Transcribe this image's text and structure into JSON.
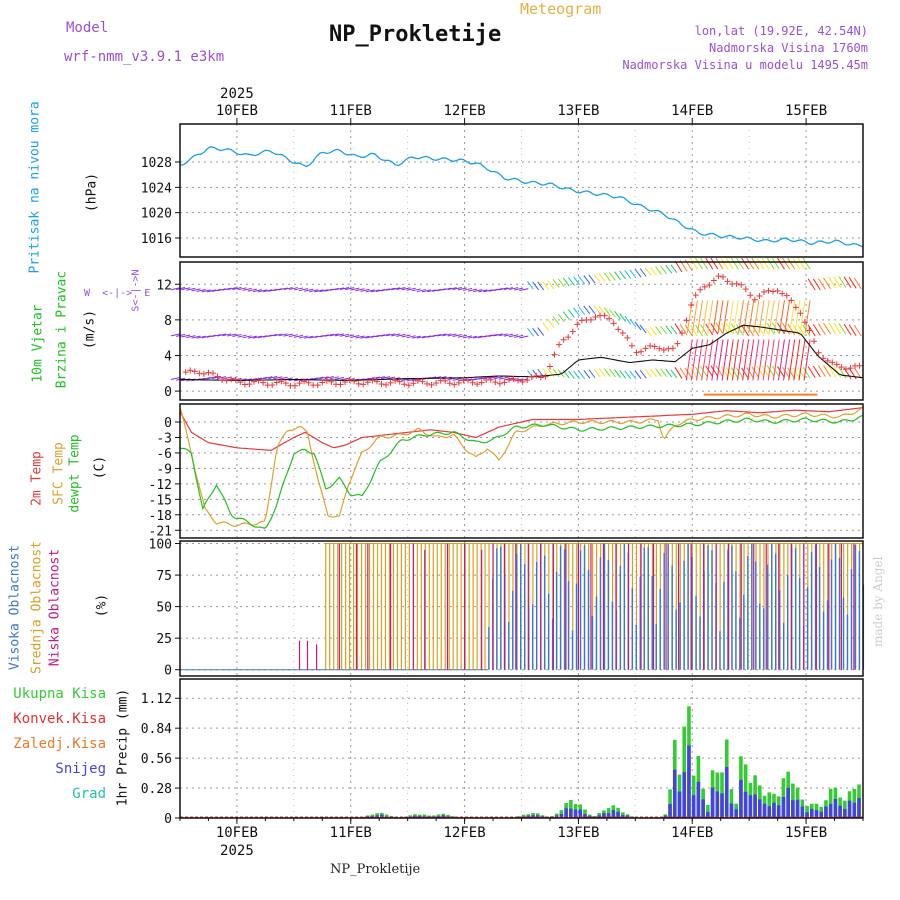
{
  "header": {
    "model_label": "Model",
    "model_name": "wrf-nmm_v3.9.1  e3km",
    "meteogram": "Meteogram",
    "station_title": "NP_Prokletije",
    "lonlat": "lon,lat (19.92E, 42.54N)",
    "altitude": "Nadmorska Visina 1760m",
    "model_altitude": "Nadmorska Visina u modelu 1495.45m",
    "footer_station": "NP_Prokletije",
    "watermark": "made by Angel"
  },
  "colors": {
    "pressure": "#1aa0e8",
    "temp2m": "#e83a3a",
    "sfc": "#e0a030",
    "dewpt": "#22c022",
    "high_cloud": "#3a78c8",
    "mid_cloud": "#d8a020",
    "low_cloud": "#c0188a",
    "total_rain": "#33cc33",
    "convective": "#e83030",
    "snow": "#4444dd",
    "hail": "#22c0b0",
    "title_purple": "#9a50d0",
    "meteogram_orange": "#e8b040"
  },
  "chart_data": [
    {
      "type": "line",
      "panel": "pressure",
      "title": "Pritisak na nivou mora",
      "ylabel": "(hPa)",
      "ylim": [
        1013,
        1034
      ],
      "yticks": [
        1016,
        1020,
        1024,
        1028
      ],
      "x_days": [
        9.5,
        9.6,
        9.75,
        9.9,
        10.1,
        10.3,
        10.5,
        10.6,
        10.75,
        10.9,
        11.05,
        11.2,
        11.4,
        11.55,
        11.75,
        11.95,
        12.1,
        12.2,
        12.35,
        12.55,
        12.75,
        12.95,
        13.15,
        13.35,
        13.55,
        13.75,
        13.9,
        14.05,
        14.25,
        14.45,
        14.65,
        14.85,
        15.05,
        15.25,
        15.45
      ],
      "values": [
        1027.5,
        1028.5,
        1030.2,
        1030.0,
        1029.0,
        1029.8,
        1028.0,
        1027.2,
        1029.5,
        1029.8,
        1028.8,
        1029.2,
        1027.5,
        1028.8,
        1028.5,
        1028.3,
        1027.8,
        1027.0,
        1025.5,
        1024.8,
        1024.5,
        1023.5,
        1023.0,
        1022.5,
        1021.0,
        1019.8,
        1018.2,
        1016.8,
        1016.3,
        1016.0,
        1015.5,
        1015.8,
        1015.2,
        1015.5,
        1014.8
      ]
    },
    {
      "type": "line",
      "panel": "wind",
      "title": "10m Vjetar Brzina i Pravac",
      "ylabel": "(m/s)",
      "ylim": [
        -1,
        14.5
      ],
      "yticks": [
        0,
        4,
        8,
        12
      ],
      "direction_legend": [
        "N",
        "W",
        "E",
        "S"
      ],
      "series": [
        {
          "name": "10m wind speed",
          "x_days": [
            9.5,
            10.0,
            10.5,
            11.0,
            11.5,
            12.0,
            12.3,
            12.6,
            12.85,
            13.0,
            13.2,
            13.45,
            13.65,
            13.85,
            14.0,
            14.15,
            14.3,
            14.45,
            14.6,
            14.8,
            14.95,
            15.1,
            15.3,
            15.5
          ],
          "values": [
            1.3,
            1.2,
            1.3,
            1.2,
            1.4,
            1.5,
            1.7,
            1.6,
            1.9,
            3.5,
            3.8,
            3.2,
            3.5,
            3.3,
            4.8,
            5.2,
            6.5,
            7.4,
            7.2,
            6.8,
            6.5,
            4.0,
            1.8,
            1.5
          ]
        },
        {
          "name": "gust",
          "x_days": [
            9.5,
            9.65,
            10.0,
            10.5,
            11.0,
            11.5,
            12.0,
            12.4,
            12.7,
            12.85,
            13.0,
            13.15,
            13.3,
            13.5,
            13.7,
            13.85,
            14.0,
            14.1,
            14.25,
            14.4,
            14.55,
            14.75,
            14.95,
            15.1,
            15.25,
            15.5
          ],
          "values": [
            1.8,
            2.3,
            1.0,
            0.8,
            1.0,
            0.9,
            1.0,
            1.1,
            1.6,
            5.5,
            7.5,
            8.5,
            8.0,
            4.5,
            5.0,
            4.5,
            10.0,
            11.8,
            12.8,
            12.0,
            10.5,
            11.5,
            9.0,
            4.5,
            2.8,
            2.6
          ]
        }
      ]
    },
    {
      "type": "line",
      "panel": "temperature",
      "ylabel": "(C)",
      "ylim": [
        -22.5,
        3.5
      ],
      "yticks": [
        0,
        -3,
        -6,
        -9,
        -12,
        -15,
        -18,
        -21
      ],
      "series": [
        {
          "name": "2m Temp",
          "x_days": [
            9.5,
            9.6,
            9.75,
            10.0,
            10.3,
            10.5,
            10.6,
            10.75,
            10.85,
            10.95,
            11.1,
            11.3,
            11.5,
            11.7,
            11.9,
            12.1,
            12.3,
            12.6,
            13.0,
            13.5,
            14.0,
            14.3,
            14.6,
            14.9,
            15.2,
            15.5
          ],
          "values": [
            2.0,
            -2.0,
            -4.0,
            -5.0,
            -5.5,
            -3.0,
            -2.0,
            -4.0,
            -5.0,
            -4.5,
            -3.0,
            -2.5,
            -2.0,
            -1.5,
            -2.0,
            -3.0,
            -1.0,
            0.5,
            0.5,
            1.0,
            1.5,
            2.2,
            1.8,
            2.3,
            2.0,
            2.8
          ]
        },
        {
          "name": "SFC Temp",
          "x_days": [
            9.5,
            9.62,
            9.72,
            9.82,
            10.0,
            10.25,
            10.35,
            10.45,
            10.55,
            10.62,
            10.72,
            10.8,
            10.9,
            10.98,
            11.1,
            11.25,
            11.45,
            11.6,
            11.75,
            11.9,
            12.0,
            12.1,
            12.2,
            12.3,
            12.45,
            12.7,
            13.0,
            13.5,
            13.7,
            13.75,
            13.85,
            14.0,
            14.5,
            14.7,
            15.0,
            15.3,
            15.5
          ],
          "values": [
            3.0,
            -8.0,
            -17.0,
            -19.5,
            -20.0,
            -19.5,
            -5.0,
            -1.5,
            -1.0,
            -2.0,
            -12.0,
            -18.0,
            -18.5,
            -12.0,
            -6.0,
            -3.0,
            -2.5,
            -1.5,
            -3.0,
            -2.5,
            -5.0,
            -7.0,
            -5.0,
            -7.5,
            -2.0,
            -0.5,
            0.0,
            0.0,
            0.5,
            -3.5,
            -0.5,
            0.5,
            1.5,
            1.0,
            1.5,
            1.0,
            2.5
          ]
        },
        {
          "name": "dewpt Temp",
          "x_days": [
            9.5,
            9.6,
            9.7,
            9.82,
            9.95,
            10.1,
            10.25,
            10.35,
            10.5,
            10.6,
            10.68,
            10.78,
            10.9,
            11.0,
            11.1,
            11.25,
            11.45,
            11.65,
            11.9,
            12.0,
            12.1,
            12.25,
            12.45,
            12.7,
            13.0,
            13.5,
            14.0,
            14.5,
            14.7,
            15.0,
            15.3,
            15.5
          ],
          "values": [
            -5.0,
            -6.0,
            -17.0,
            -12.0,
            -18.0,
            -19.5,
            -21.0,
            -16.0,
            -6.0,
            -5.5,
            -6.0,
            -13.0,
            -11.0,
            -14.0,
            -14.5,
            -8.0,
            -3.5,
            -2.5,
            -2.0,
            -3.0,
            -4.0,
            -3.5,
            -1.0,
            -0.5,
            -1.5,
            -1.0,
            -0.5,
            0.5,
            0.0,
            0.5,
            0.0,
            1.0
          ]
        }
      ]
    },
    {
      "type": "bar",
      "panel": "clouds",
      "ylabel": "(%)",
      "ylim": [
        -5,
        102
      ],
      "yticks": [
        0,
        25,
        50,
        75,
        100
      ],
      "series_names": [
        "Visoka Oblacnost",
        "Srednja Oblacnost",
        "Niska Oblacnost"
      ],
      "mid_cloud_full_from_day": 10.78,
      "high_cloud_from_day": 12.2,
      "low_cloud_spikes": [
        {
          "day": 10.55,
          "percent": 23
        },
        {
          "day": 10.62,
          "percent": 23
        },
        {
          "day": 10.7,
          "percent": 20
        },
        {
          "day": 10.9,
          "percent": 100
        },
        {
          "day": 11.05,
          "percent": 100
        },
        {
          "day": 11.15,
          "percent": 100
        },
        {
          "day": 11.35,
          "percent": 100
        },
        {
          "day": 11.55,
          "percent": 100
        },
        {
          "day": 11.65,
          "percent": 95
        },
        {
          "day": 11.85,
          "percent": 100
        },
        {
          "day": 12.0,
          "percent": 100
        },
        {
          "day": 12.15,
          "percent": 95
        },
        {
          "day": 12.25,
          "percent": 100
        },
        {
          "day": 12.35,
          "percent": 100
        }
      ]
    },
    {
      "type": "bar",
      "panel": "precipitation",
      "ylabel": "1hr Precip (mm)",
      "ylim": [
        0,
        1.3
      ],
      "yticks": [
        0,
        0.28,
        0.56,
        0.84,
        1.12
      ],
      "legend": [
        "Ukupna Kisa",
        "Konvek.Kisa",
        "Zaledj.Kisa",
        "Snijeg",
        "Grad"
      ],
      "peaks": [
        {
          "day": 11.25,
          "mm": 0.05
        },
        {
          "day": 11.6,
          "mm": 0.04
        },
        {
          "day": 11.8,
          "mm": 0.04
        },
        {
          "day": 12.6,
          "mm": 0.05
        },
        {
          "day": 12.95,
          "mm": 0.18
        },
        {
          "day": 13.3,
          "mm": 0.12
        },
        {
          "day": 13.85,
          "mm": 0.75
        },
        {
          "day": 13.95,
          "mm": 1.32
        },
        {
          "day": 14.05,
          "mm": 0.7
        },
        {
          "day": 14.2,
          "mm": 0.6
        },
        {
          "day": 14.3,
          "mm": 0.78
        },
        {
          "day": 14.45,
          "mm": 0.72
        },
        {
          "day": 14.55,
          "mm": 0.4
        },
        {
          "day": 14.7,
          "mm": 0.25
        },
        {
          "day": 14.85,
          "mm": 0.45
        },
        {
          "day": 15.05,
          "mm": 0.15
        },
        {
          "day": 15.25,
          "mm": 0.3
        },
        {
          "day": 15.45,
          "mm": 0.35
        }
      ]
    }
  ],
  "x_axis": {
    "year": "2025",
    "day_labels": [
      "10FEB",
      "11FEB",
      "12FEB",
      "13FEB",
      "14FEB",
      "15FEB"
    ],
    "day_values": [
      10,
      11,
      12,
      13,
      14,
      15
    ],
    "range": [
      9.5,
      15.5
    ]
  },
  "panel_labels": {
    "pressure": "Pritisak na nivou mora",
    "pressure_unit": "(hPa)",
    "wind1": "10m Vjetar",
    "wind2": "Brzina i Pravac",
    "wind_unit": "(m/s)",
    "temp2m": "2m Temp",
    "sfc": "SFC Temp",
    "dewpt": "dewpt Temp",
    "temp_unit": "(C)",
    "cl_high": "Visoka Oblacnost",
    "cl_mid": "Srednja Oblacnost",
    "cl_low": "Niska Oblacnost",
    "cl_unit": "(%)",
    "pr_total": "Ukupna Kisa",
    "pr_conv": "Konvek.Kisa",
    "pr_frz": "Zaledj.Kisa",
    "pr_snow": "Snijeg",
    "pr_hail": "Grad",
    "pr_unit": "1hr Precip (mm)",
    "dir_n": "N",
    "dir_w": "W",
    "dir_e": "E",
    "dir_s": "S"
  }
}
